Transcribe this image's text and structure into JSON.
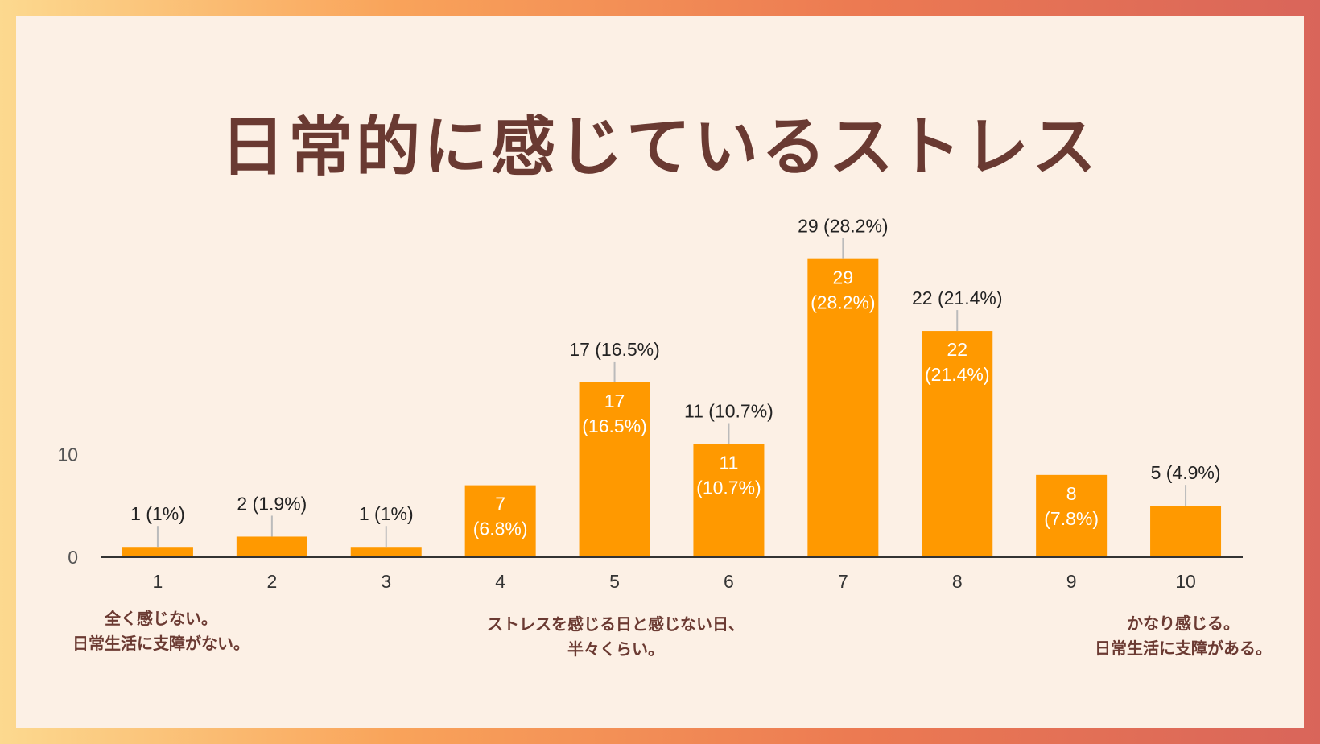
{
  "title": "日常的に感じているストレス",
  "chart_data": {
    "type": "bar",
    "categories": [
      "1",
      "2",
      "3",
      "4",
      "5",
      "6",
      "7",
      "8",
      "9",
      "10"
    ],
    "values": [
      1,
      2,
      1,
      7,
      17,
      11,
      29,
      22,
      8,
      5
    ],
    "data_labels": [
      "1 (1%)",
      "2 (1.9%)",
      "1 (1%)",
      "7 (6.8%)",
      "17 (16.5%)",
      "11 (10.7%)",
      "29 (28.2%)",
      "22 (21.4%)",
      "8 (7.8%)",
      "5 (4.9%)"
    ],
    "yticks": [
      0,
      10
    ],
    "ylim": [
      0,
      29
    ],
    "bar_color": "#ff9900",
    "grid": false
  },
  "annotations": {
    "low": [
      "全く感じない。",
      "日常生活に支障がない。"
    ],
    "mid": [
      "ストレスを感じる日と感じない日、",
      "半々くらい。"
    ],
    "high": [
      "かなり感じる。",
      "日常生活に支障がある。"
    ]
  },
  "colors": {
    "title": "#6a3a32",
    "annotation": "#6b3a32",
    "panel": "#fcf0e5"
  }
}
